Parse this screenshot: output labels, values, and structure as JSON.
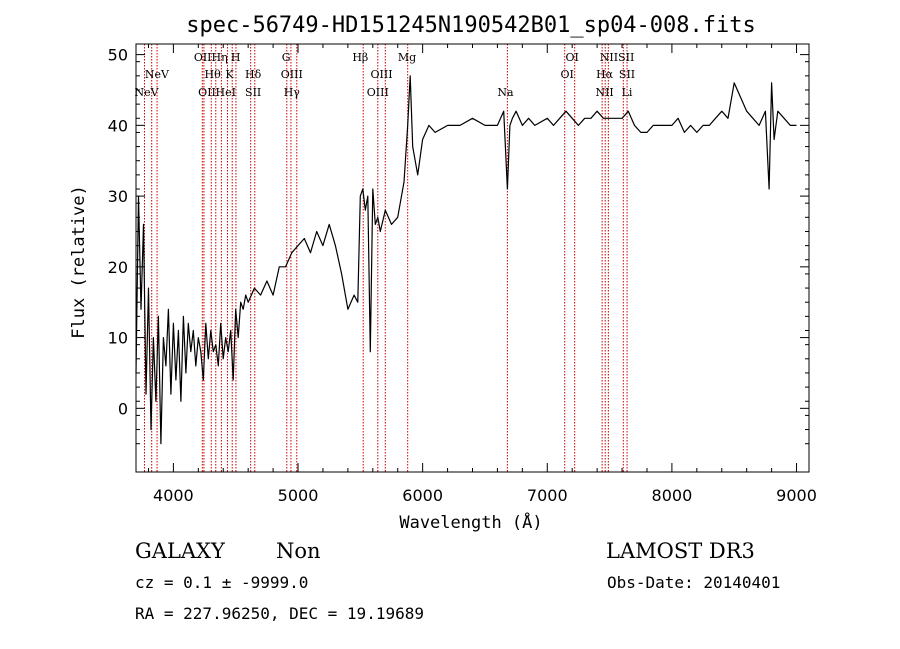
{
  "chart_data": {
    "type": "line",
    "title": "spec-56749-HD151245N190542B01_sp04-008.fits",
    "xlabel": "Wavelength (Å)",
    "ylabel": "Flux (relative)",
    "xlim": [
      3700,
      9100
    ],
    "ylim": [
      -9,
      51.5
    ],
    "x_ticks": [
      4000,
      5000,
      6000,
      7000,
      8000,
      9000
    ],
    "y_ticks": [
      0,
      10,
      20,
      30,
      40,
      50
    ],
    "grid": false,
    "legend": "none",
    "line_color": "#000000",
    "marker_color": "#cc0000",
    "series": [
      {
        "x": [
          3700,
          3720,
          3740,
          3760,
          3780,
          3800,
          3820,
          3840,
          3860,
          3880,
          3900,
          3920,
          3940,
          3960,
          3980,
          4000,
          4020,
          4040,
          4060,
          4080,
          4100,
          4120,
          4140,
          4160,
          4180,
          4200,
          4220,
          4240,
          4260,
          4280,
          4300,
          4320,
          4340,
          4360,
          4380,
          4400,
          4420,
          4440,
          4460,
          4480,
          4500,
          4520,
          4540,
          4560,
          4580,
          4600,
          4650,
          4700,
          4750,
          4800,
          4850,
          4900,
          4950,
          5000,
          5050,
          5100,
          5150,
          5200,
          5250,
          5300,
          5350,
          5400,
          5450,
          5480,
          5500,
          5520,
          5540,
          5560,
          5580,
          5600,
          5620,
          5640,
          5660,
          5700,
          5750,
          5800,
          5850,
          5880,
          5900,
          5920,
          5940,
          5960,
          6000,
          6050,
          6100,
          6200,
          6300,
          6400,
          6500,
          6600,
          6650,
          6680,
          6700,
          6720,
          6750,
          6800,
          6850,
          6900,
          7000,
          7050,
          7100,
          7150,
          7200,
          7250,
          7300,
          7350,
          7400,
          7450,
          7500,
          7550,
          7600,
          7650,
          7700,
          7750,
          7800,
          7850,
          7900,
          7950,
          8000,
          8050,
          8100,
          8150,
          8200,
          8250,
          8300,
          8350,
          8400,
          8450,
          8500,
          8550,
          8600,
          8650,
          8700,
          8750,
          8780,
          8800,
          8820,
          8850,
          8900,
          8950,
          9000
        ],
        "y": [
          5,
          30,
          14,
          26,
          2,
          17,
          -3,
          10,
          1,
          13,
          -5,
          10,
          6,
          14,
          2,
          12,
          4,
          11,
          1,
          13,
          5,
          12,
          8,
          11,
          6,
          10,
          8,
          4,
          12,
          7,
          11,
          8,
          9,
          6,
          12,
          7,
          10,
          8,
          11,
          4,
          14,
          10,
          15,
          14,
          16,
          15,
          17,
          16,
          18,
          16,
          20,
          20,
          22,
          23,
          24,
          22,
          25,
          23,
          26,
          23,
          19,
          14,
          16,
          15,
          30,
          31,
          28,
          30,
          8,
          31,
          26,
          27,
          25,
          28,
          26,
          27,
          32,
          40,
          47,
          37,
          35,
          33,
          38,
          40,
          39,
          40,
          40,
          41,
          40,
          40,
          42,
          31,
          40,
          41,
          42,
          40,
          41,
          40,
          41,
          40,
          41,
          42,
          41,
          40,
          41,
          41,
          42,
          41,
          41,
          41,
          41,
          42,
          40,
          39,
          39,
          40,
          40,
          40,
          40,
          41,
          39,
          40,
          39,
          40,
          40,
          41,
          42,
          41,
          46,
          44,
          42,
          41,
          40,
          42,
          31,
          46,
          38,
          42,
          41,
          40,
          40
        ]
      }
    ],
    "lines": [
      {
        "x": 3768,
        "label": ""
      },
      {
        "x": 3826,
        "label": "NeV"
      },
      {
        "x": 3869,
        "label": "NeV"
      },
      {
        "x": 4232,
        "label": "OII"
      },
      {
        "x": 4245,
        "label": "OII"
      },
      {
        "x": 4304,
        "label": "Hθ"
      },
      {
        "x": 4340,
        "label": "Hη"
      },
      {
        "x": 4385,
        "label": "HeI"
      },
      {
        "x": 4434,
        "label": "K"
      },
      {
        "x": 4472,
        "label": "HeI"
      },
      {
        "x": 4502,
        "label": "H"
      },
      {
        "x": 4620,
        "label": "Hδ"
      },
      {
        "x": 4653,
        "label": "SII"
      },
      {
        "x": 4910,
        "label": "G"
      },
      {
        "x": 4943,
        "label": "Hγ"
      },
      {
        "x": 4990,
        "label": "OIII"
      },
      {
        "x": 5523,
        "label": "Hβ"
      },
      {
        "x": 5640,
        "label": "OIII"
      },
      {
        "x": 5700,
        "label": "OIII"
      },
      {
        "x": 5880,
        "label": "Mg"
      },
      {
        "x": 6680,
        "label": "Na"
      },
      {
        "x": 7140,
        "label": "OI"
      },
      {
        "x": 7220,
        "label": "OI"
      },
      {
        "x": 7440,
        "label": "NII"
      },
      {
        "x": 7465,
        "label": "Hα"
      },
      {
        "x": 7490,
        "label": "NII"
      },
      {
        "x": 7610,
        "label": "SII"
      },
      {
        "x": 7640,
        "label": "Li"
      }
    ],
    "line_labels": [
      {
        "text": "NeV",
        "x": 3868,
        "row": 1
      },
      {
        "text": "NeV",
        "x": 3785,
        "row": 2
      },
      {
        "text": "OIIHη",
        "x": 4300,
        "row": 0
      },
      {
        "text": "H",
        "x": 4500,
        "row": 0
      },
      {
        "text": "Hθ",
        "x": 4315,
        "row": 1
      },
      {
        "text": "K",
        "x": 4450,
        "row": 1
      },
      {
        "text": "Hδ",
        "x": 4640,
        "row": 1
      },
      {
        "text": "OII",
        "x": 4270,
        "row": 2
      },
      {
        "text": "HeI",
        "x": 4420,
        "row": 2
      },
      {
        "text": "SII",
        "x": 4640,
        "row": 2
      },
      {
        "text": "G",
        "x": 4905,
        "row": 0
      },
      {
        "text": "OIII",
        "x": 4950,
        "row": 1
      },
      {
        "text": "Hγ",
        "x": 4950,
        "row": 2
      },
      {
        "text": "Hβ",
        "x": 5500,
        "row": 0
      },
      {
        "text": "OIII",
        "x": 5670,
        "row": 1
      },
      {
        "text": "OIII",
        "x": 5640,
        "row": 2
      },
      {
        "text": "Mg",
        "x": 5875,
        "row": 0
      },
      {
        "text": "Na",
        "x": 6665,
        "row": 2
      },
      {
        "text": "OI",
        "x": 7200,
        "row": 0
      },
      {
        "text": "OI",
        "x": 7160,
        "row": 1
      },
      {
        "text": "NIISII",
        "x": 7560,
        "row": 0
      },
      {
        "text": "Hα",
        "x": 7460,
        "row": 1
      },
      {
        "text": "SII",
        "x": 7640,
        "row": 1
      },
      {
        "text": "NII",
        "x": 7460,
        "row": 2
      },
      {
        "text": "Li",
        "x": 7640,
        "row": 2
      }
    ]
  },
  "info": {
    "class_label": "GALAXY",
    "subclass_label": "Non",
    "survey_label": "LAMOST DR3",
    "cz_text": "cz = 0.1 ± -9999.0",
    "obs_date_text": "Obs-Date: 20140401",
    "coord_text": "RA = 227.96250, DEC =  19.19689"
  }
}
